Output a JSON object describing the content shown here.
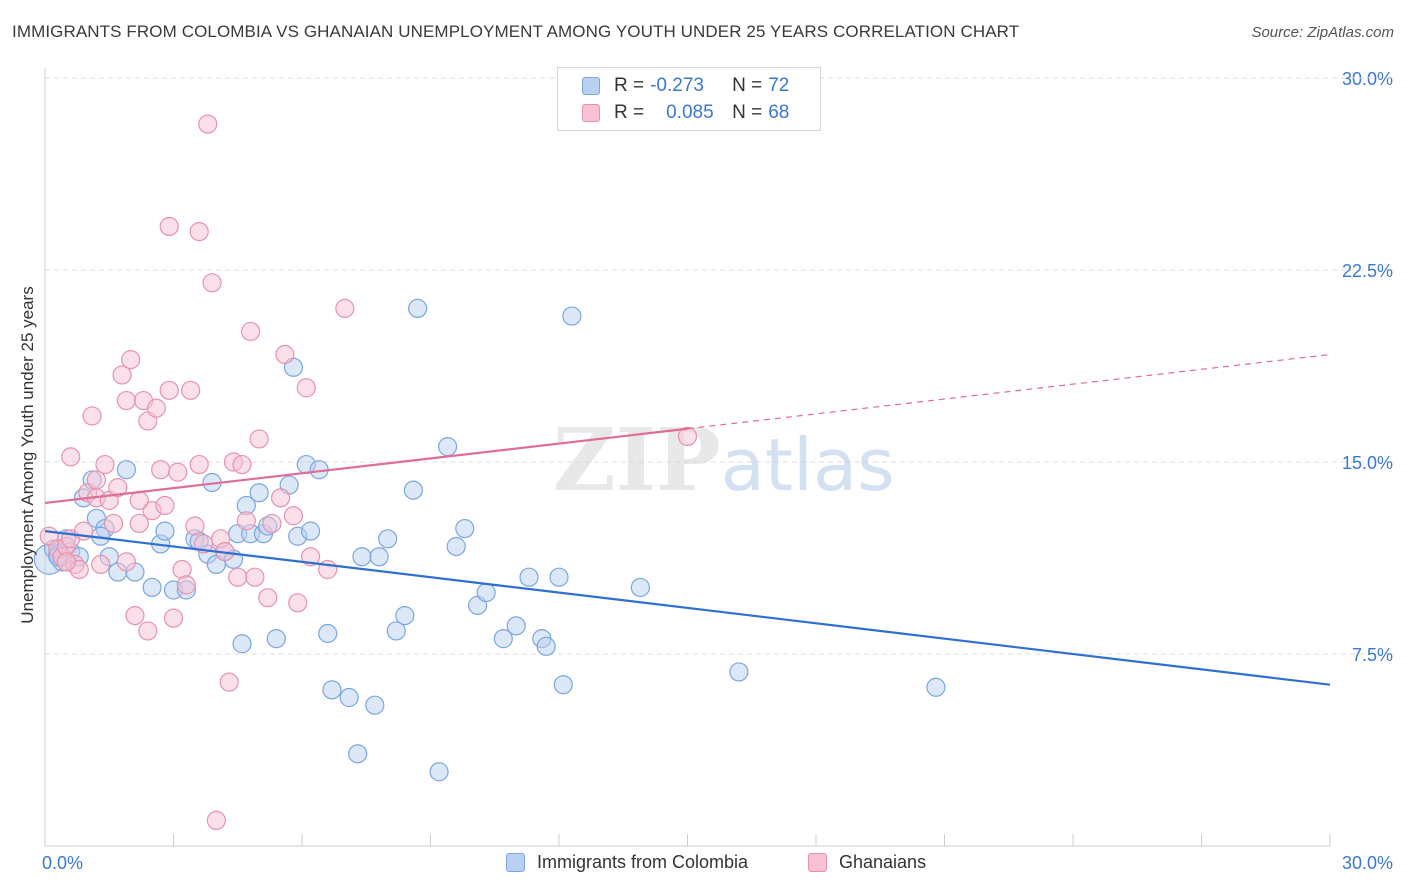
{
  "chart_data": {
    "type": "scatter",
    "title": "IMMIGRANTS FROM COLOMBIA VS GHANAIAN UNEMPLOYMENT AMONG YOUTH UNDER 25 YEARS CORRELATION CHART",
    "source": "Source: ZipAtlas.com",
    "watermark": "ZIPatlas",
    "xlabel": "",
    "ylabel": "Unemployment Among Youth under 25 years",
    "xlim": [
      0,
      30
    ],
    "ylim": [
      0,
      30
    ],
    "x_tick_labels": [
      "0.0%",
      "30.0%"
    ],
    "y_tick_values": [
      7.5,
      15.0,
      22.5,
      30.0
    ],
    "y_tick_labels": [
      "7.5%",
      "15.0%",
      "22.5%",
      "30.0%"
    ],
    "grid": true,
    "legend": [
      {
        "name": "Immigrants from Colombia",
        "r_label": "R =",
        "r_value": "-0.273",
        "n_label": "N =",
        "n_value": "72",
        "color": "#7aa7e0",
        "fill": "#b9d0f1"
      },
      {
        "name": "Ghanaians",
        "r_label": "R =",
        "r_value": "0.085",
        "n_label": "N =",
        "n_value": "68",
        "color": "#e892ac",
        "fill": "#f8c2d4"
      }
    ],
    "series": [
      {
        "name": "Immigrants from Colombia",
        "color": "#7aa7e0",
        "trend": {
          "x0": 0,
          "y0": 12.3,
          "x1": 30,
          "y1": 6.3,
          "color": "#2f6fd1"
        },
        "points": [
          [
            0.1,
            11.2
          ],
          [
            0.2,
            11.6
          ],
          [
            0.3,
            11.4
          ],
          [
            0.4,
            11.1
          ],
          [
            0.6,
            11.5
          ],
          [
            0.8,
            11.3
          ],
          [
            0.5,
            12.0
          ],
          [
            0.9,
            13.6
          ],
          [
            1.2,
            12.8
          ],
          [
            1.1,
            14.3
          ],
          [
            1.4,
            12.4
          ],
          [
            1.3,
            12.1
          ],
          [
            1.9,
            14.7
          ],
          [
            1.5,
            11.3
          ],
          [
            1.7,
            10.7
          ],
          [
            2.1,
            10.7
          ],
          [
            2.5,
            10.1
          ],
          [
            2.7,
            11.8
          ],
          [
            2.8,
            12.3
          ],
          [
            3.0,
            10.0
          ],
          [
            3.3,
            10.0
          ],
          [
            3.5,
            12.0
          ],
          [
            3.6,
            11.9
          ],
          [
            3.8,
            11.4
          ],
          [
            3.9,
            14.2
          ],
          [
            4.0,
            11.0
          ],
          [
            4.2,
            11.5
          ],
          [
            4.4,
            11.2
          ],
          [
            4.5,
            12.2
          ],
          [
            4.6,
            7.9
          ],
          [
            4.7,
            13.3
          ],
          [
            4.8,
            12.2
          ],
          [
            5.0,
            13.8
          ],
          [
            5.1,
            12.2
          ],
          [
            5.2,
            12.5
          ],
          [
            5.4,
            8.1
          ],
          [
            5.7,
            14.1
          ],
          [
            5.8,
            18.7
          ],
          [
            5.9,
            12.1
          ],
          [
            6.1,
            14.9
          ],
          [
            6.2,
            12.3
          ],
          [
            6.4,
            14.7
          ],
          [
            6.6,
            8.3
          ],
          [
            6.7,
            6.1
          ],
          [
            7.1,
            5.8
          ],
          [
            7.3,
            3.6
          ],
          [
            7.4,
            11.3
          ],
          [
            7.7,
            5.5
          ],
          [
            7.8,
            11.3
          ],
          [
            8.0,
            12.0
          ],
          [
            8.2,
            8.4
          ],
          [
            8.4,
            9.0
          ],
          [
            8.6,
            13.9
          ],
          [
            8.7,
            21.0
          ],
          [
            9.2,
            2.9
          ],
          [
            9.4,
            15.6
          ],
          [
            9.6,
            11.7
          ],
          [
            9.8,
            12.4
          ],
          [
            10.1,
            9.4
          ],
          [
            10.3,
            9.9
          ],
          [
            10.7,
            8.1
          ],
          [
            11.0,
            8.6
          ],
          [
            11.3,
            10.5
          ],
          [
            11.6,
            8.1
          ],
          [
            11.7,
            7.8
          ],
          [
            12.0,
            10.5
          ],
          [
            12.1,
            6.3
          ],
          [
            12.3,
            20.7
          ],
          [
            13.9,
            10.1
          ],
          [
            16.2,
            6.8
          ],
          [
            20.8,
            6.2
          ],
          [
            0.3,
            11.3
          ]
        ],
        "sizes": {
          "0.1,11.2": 30
        }
      },
      {
        "name": "Ghanaians",
        "color": "#e892ac",
        "trend": {
          "x0": 0,
          "y0": 13.4,
          "x1": 15.0,
          "y1": 16.3,
          "dash_x1": 30,
          "dash_y1": 19.2,
          "color": "#e06d95"
        },
        "points": [
          [
            0.1,
            12.1
          ],
          [
            0.3,
            11.6
          ],
          [
            0.4,
            11.3
          ],
          [
            0.5,
            11.7
          ],
          [
            0.6,
            12.0
          ],
          [
            0.7,
            11.0
          ],
          [
            0.8,
            10.8
          ],
          [
            0.9,
            12.3
          ],
          [
            0.6,
            15.2
          ],
          [
            1.0,
            13.8
          ],
          [
            1.1,
            16.8
          ],
          [
            1.2,
            13.6
          ],
          [
            1.3,
            11.0
          ],
          [
            1.4,
            14.9
          ],
          [
            1.5,
            13.5
          ],
          [
            1.6,
            12.6
          ],
          [
            1.7,
            14.0
          ],
          [
            1.8,
            18.4
          ],
          [
            1.9,
            17.4
          ],
          [
            2.0,
            19.0
          ],
          [
            2.1,
            9.0
          ],
          [
            2.2,
            12.6
          ],
          [
            2.3,
            17.4
          ],
          [
            2.4,
            16.6
          ],
          [
            2.5,
            13.1
          ],
          [
            2.6,
            17.1
          ],
          [
            2.7,
            14.7
          ],
          [
            2.8,
            13.3
          ],
          [
            2.9,
            17.8
          ],
          [
            3.0,
            8.9
          ],
          [
            3.1,
            14.6
          ],
          [
            2.4,
            8.4
          ],
          [
            3.2,
            10.8
          ],
          [
            3.3,
            10.2
          ],
          [
            3.4,
            17.8
          ],
          [
            3.5,
            12.5
          ],
          [
            3.6,
            24.0
          ],
          [
            3.7,
            11.8
          ],
          [
            3.8,
            28.2
          ],
          [
            3.9,
            22.0
          ],
          [
            4.0,
            1.0
          ],
          [
            4.1,
            12.0
          ],
          [
            4.2,
            11.5
          ],
          [
            4.3,
            6.4
          ],
          [
            4.4,
            15.0
          ],
          [
            4.5,
            10.5
          ],
          [
            4.6,
            14.9
          ],
          [
            4.7,
            12.7
          ],
          [
            4.8,
            20.1
          ],
          [
            4.9,
            10.5
          ],
          [
            5.0,
            15.9
          ],
          [
            5.2,
            9.7
          ],
          [
            5.3,
            12.6
          ],
          [
            5.5,
            13.6
          ],
          [
            5.6,
            19.2
          ],
          [
            5.8,
            12.9
          ],
          [
            5.9,
            9.5
          ],
          [
            6.1,
            17.9
          ],
          [
            6.2,
            11.3
          ],
          [
            6.6,
            10.8
          ],
          [
            7.0,
            21.0
          ],
          [
            15.0,
            16.0
          ],
          [
            2.9,
            24.2
          ],
          [
            1.2,
            14.3
          ],
          [
            1.9,
            11.1
          ],
          [
            3.6,
            14.9
          ],
          [
            0.5,
            11.1
          ],
          [
            2.2,
            13.5
          ]
        ]
      }
    ]
  }
}
